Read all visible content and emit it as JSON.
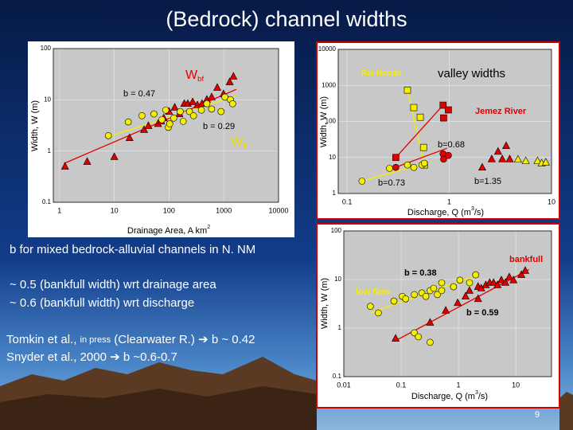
{
  "title": "(Bedrock) channel widths",
  "text_lines": [
    {
      "parts": [
        "b for mixed bedrock-alluvial channels in N. NM"
      ]
    },
    {
      "parts": [
        "~ 0.5 (bankfull width) wrt drainage area"
      ]
    },
    {
      "parts": [
        "~ 0.6 (bankfull width) wrt discharge"
      ]
    },
    {
      "parts": [
        "Tomkin et al., ",
        "in press",
        " (Clearwater R.) ",
        "➔",
        " b ~ 0.42"
      ]
    },
    {
      "parts": [
        "Snyder et al., 2000 ",
        "➔",
        " b ~0.6-0.7"
      ]
    }
  ],
  "page_number": "9",
  "chart_data": [
    {
      "type": "scatter",
      "log_x": true,
      "log_y": true,
      "grid": true,
      "ylabel": {
        "before": "Width, W (m)"
      },
      "xlabel": {
        "before": "Drainage Area, A km",
        "sup": "2"
      },
      "xlim": [
        0.77,
        10000
      ],
      "ylim": [
        0.1,
        100
      ],
      "xticks": [
        1,
        10,
        100,
        1000,
        10000
      ],
      "yticks": [
        0.1,
        1,
        10,
        100
      ],
      "series": [
        {
          "color": "#e00000",
          "marker": "triangle",
          "x": [
            1.26,
            3.2,
            10,
            19,
            35,
            42,
            63,
            72,
            80,
            100,
            127,
            155,
            190,
            220,
            270,
            330,
            400,
            490,
            600,
            760,
            990,
            1280,
            1500
          ],
          "values": [
            0.5,
            0.62,
            0.77,
            1.8,
            2.6,
            3.1,
            3.4,
            3.8,
            4.4,
            5.9,
            7.1,
            5.3,
            8.4,
            8.4,
            9.1,
            7.9,
            8.4,
            10.1,
            11.3,
            17.3,
            13,
            22.2,
            28.6
          ]
        },
        {
          "color": "#f5ee00",
          "marker": "circle",
          "x": [
            7.8,
            18,
            32,
            53,
            74,
            87,
            97,
            103,
            122,
            160,
            181,
            236,
            280,
            390,
            490,
            600,
            890,
            1050,
            1320,
            1450
          ],
          "values": [
            2,
            3.7,
            4.9,
            5.3,
            4.1,
            6.3,
            2.9,
            3.4,
            4.4,
            5.9,
            3.8,
            5.9,
            4.9,
            6.3,
            8.4,
            6.6,
            5.9,
            11.3,
            10.1,
            8.4
          ]
        }
      ],
      "fit_lines": [
        {
          "color": "#e00000",
          "x": [
            1.2,
            1700
          ],
          "values": [
            0.57,
            16
          ]
        },
        {
          "color": "#f5ee00",
          "x": [
            7.8,
            1700
          ],
          "values": [
            1.9,
            12
          ]
        }
      ],
      "annotations": [
        {
          "text": "b = 0.47",
          "color": "#000000"
        },
        {
          "text": "b = 0.29",
          "color": "#000000"
        },
        {
          "text": "W",
          "sub": "bf",
          "color": "#e00000"
        },
        {
          "text": "W",
          "sub": "lf",
          "color": "#e8e000"
        }
      ]
    },
    {
      "type": "scatter",
      "log_x": true,
      "log_y": true,
      "grid": true,
      "ylabel": {
        "before": "Width, W (m)"
      },
      "xlabel": {
        "before": "Discharge, Q (m",
        "sup": "3",
        "after": "/s)"
      },
      "xlim": [
        0.082,
        10
      ],
      "ylim": [
        1,
        10000
      ],
      "xticks": [
        0.1,
        1,
        10
      ],
      "yticks": [
        1,
        10,
        100,
        1000,
        10000
      ],
      "series": [
        {
          "color": "#f5ee00",
          "marker": "square",
          "x": [
            0.39,
            0.45,
            0.52,
            0.56,
            0.57
          ],
          "values": [
            740,
            243,
            131,
            19,
            6.2
          ]
        },
        {
          "color": "#e00000",
          "marker": "square",
          "x": [
            0.3,
            0.87,
            0.98,
            0.88
          ],
          "values": [
            10,
            283,
            209,
            125
          ]
        },
        {
          "color": "#f5ee00",
          "marker": "circle",
          "x": [
            0.14,
            0.26,
            0.39,
            0.45,
            0.54,
            0.57
          ],
          "values": [
            2.2,
            5,
            6.2,
            5.3,
            6.2,
            6.9
          ]
        },
        {
          "color": "#e00000",
          "marker": "circle",
          "x": [
            0.3,
            0.87,
            0.98,
            0.88
          ],
          "values": [
            5.3,
            12.6,
            11.4,
            9
          ]
        },
        {
          "color": "#e00000",
          "marker": "triangle",
          "x": [
            2.1,
            2.6,
            3,
            3.6,
            3.9,
            3.3
          ],
          "values": [
            5.3,
            9,
            14.6,
            21,
            9,
            9
          ]
        },
        {
          "color": "#f5ee00",
          "marker": "triangle",
          "x": [
            4.7,
            5.6,
            7.3,
            8,
            8.8
          ],
          "values": [
            8.8,
            8,
            8,
            6.9,
            7.3
          ]
        }
      ],
      "fit_lines": [
        {
          "color": "#f5ee00",
          "x": [
            0.39,
            0.57
          ],
          "values": [
            740,
            6.2
          ]
        },
        {
          "color": "#e00000",
          "x": [
            0.3,
            0.87
          ],
          "values": [
            10,
            283
          ]
        },
        {
          "color": "#f5ee00",
          "x": [
            0.14,
            0.58
          ],
          "values": [
            2.2,
            6.9
          ]
        },
        {
          "color": "#e00000",
          "x": [
            0.26,
            0.95
          ],
          "values": [
            4.6,
            18
          ]
        }
      ],
      "annotations": [
        {
          "text": "Rio Hondo",
          "color": "#f5ee00",
          "bold": true
        },
        {
          "text": "valley widths",
          "color": "#000000"
        },
        {
          "text": "Jemez River",
          "color": "#e00000",
          "bold": true
        },
        {
          "text": "b=0.68",
          "color": "#000000"
        },
        {
          "text": "b=0.73",
          "color": "#000000"
        },
        {
          "text": "b=1.35",
          "color": "#000000"
        }
      ]
    },
    {
      "type": "scatter",
      "log_x": true,
      "log_y": true,
      "grid": true,
      "ylabel": {
        "before": "Width, W (m)"
      },
      "xlabel": {
        "before": "Discharge,  Q (m",
        "sup": "3",
        "after": "/s)"
      },
      "xlim": [
        0.01,
        42
      ],
      "ylim": [
        0.1,
        100
      ],
      "xticks": [
        0.01,
        0.1,
        1,
        10
      ],
      "yticks": [
        0.1,
        1,
        10,
        100
      ],
      "series": [
        {
          "color": "#f5ee00",
          "marker": "circle",
          "x": [
            0.029,
            0.04,
            0.075,
            0.105,
            0.12,
            0.17,
            0.23,
            0.27,
            0.32,
            0.37,
            0.43,
            0.51,
            0.82,
            1.06,
            1.56,
            2,
            0.17,
            0.2,
            0.32,
            0.51
          ],
          "values": [
            2.8,
            2.05,
            3.6,
            4.5,
            4,
            4.9,
            5.3,
            4.5,
            5.9,
            6.6,
            4.9,
            5.9,
            7.1,
            9.7,
            8.6,
            12.5,
            0.8,
            0.66,
            0.51,
            8.6
          ]
        },
        {
          "color": "#e00000",
          "marker": "triangle",
          "x": [
            0.08,
            0.32,
            0.6,
            0.97,
            1.56,
            2.2,
            2.5,
            3,
            3.5,
            4.1,
            4.8,
            5.6,
            6.6,
            7.7,
            9.1,
            12.5,
            14.6,
            2.2,
            1.33
          ],
          "values": [
            0.61,
            1.3,
            2.3,
            3.3,
            5.9,
            7.1,
            6.6,
            7.7,
            8.6,
            8.6,
            7.7,
            9.7,
            8.6,
            11.2,
            9.7,
            12.5,
            15.2,
            4,
            4.5
          ]
        }
      ],
      "fit_lines": [
        {
          "color": "#f5ee00",
          "x": [
            0.029,
            2.2
          ],
          "values": [
            2.05,
            12.5
          ]
        },
        {
          "color": "#e00000",
          "x": [
            0.08,
            17
          ],
          "values": [
            0.55,
            16
          ]
        }
      ],
      "annotations": [
        {
          "text": "b = 0.38",
          "color": "#000000",
          "bold": true
        },
        {
          "text": "b = 0.59",
          "color": "#000000",
          "bold": true
        },
        {
          "text": "bankfull",
          "color": "#e00000",
          "bold": true
        },
        {
          "text": "low flow",
          "color": "#f5ee00",
          "bold": true
        }
      ]
    }
  ]
}
